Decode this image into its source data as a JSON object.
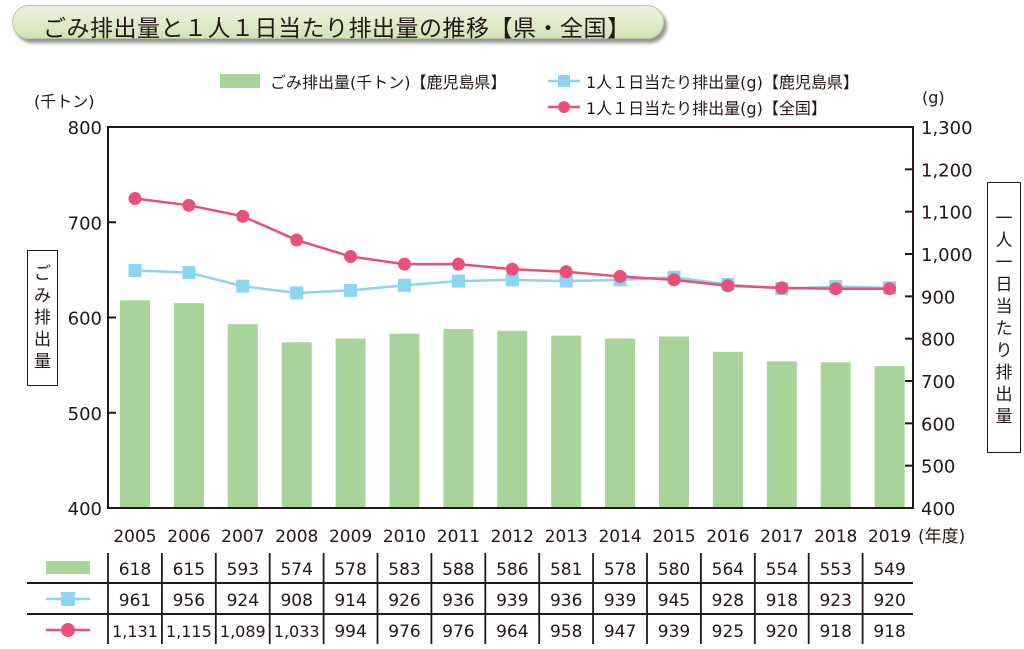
{
  "title": "ごみ排出量と１人１日当たり排出量の推移【県・全国】",
  "colors": {
    "bar": "#a8d49a",
    "pref_line": "#8dd3f2",
    "national_line": "#e8507a",
    "title_bg": "#dbe7c4"
  },
  "chart_data": {
    "type": "bar+line",
    "title": "ごみ排出量と１人１日当たり排出量の推移【県・全国】",
    "categories": [
      "2005",
      "2006",
      "2007",
      "2008",
      "2009",
      "2010",
      "2011",
      "2012",
      "2013",
      "2014",
      "2015",
      "2016",
      "2017",
      "2018",
      "2019"
    ],
    "x_unit": "(年度)",
    "left_axis": {
      "unit": "(千トン)",
      "label": "ごみ排出量",
      "range": [
        400,
        800
      ],
      "ticks": [
        "400",
        "500",
        "600",
        "700",
        "800"
      ]
    },
    "right_axis": {
      "unit": "(g)",
      "label": "一人一日当たり排出量",
      "range": [
        400,
        1300
      ],
      "ticks": [
        "400",
        "500",
        "600",
        "700",
        "800",
        "900",
        "1,000",
        "1,100",
        "1,200",
        "1,300"
      ]
    },
    "series": [
      {
        "name": "ごみ排出量(千トン)【鹿児島県】",
        "type": "bar",
        "axis": "left",
        "values": [
          618,
          615,
          593,
          574,
          578,
          583,
          588,
          586,
          581,
          578,
          580,
          564,
          554,
          553,
          549
        ],
        "labels": [
          "618",
          "615",
          "593",
          "574",
          "578",
          "583",
          "588",
          "586",
          "581",
          "578",
          "580",
          "564",
          "554",
          "553",
          "549"
        ]
      },
      {
        "name": "1人１日当たり排出量(g)【鹿児島県】",
        "type": "line",
        "marker": "square",
        "axis": "right",
        "values": [
          961,
          956,
          924,
          908,
          914,
          926,
          936,
          939,
          936,
          939,
          945,
          928,
          918,
          923,
          920
        ],
        "labels": [
          "961",
          "956",
          "924",
          "908",
          "914",
          "926",
          "936",
          "939",
          "936",
          "939",
          "945",
          "928",
          "918",
          "923",
          "920"
        ]
      },
      {
        "name": "1人１日当たり排出量(g)【全国】",
        "type": "line",
        "marker": "circle",
        "axis": "right",
        "values": [
          1131,
          1115,
          1089,
          1033,
          994,
          976,
          976,
          964,
          958,
          947,
          939,
          925,
          920,
          918,
          918
        ],
        "labels": [
          "1,131",
          "1,115",
          "1,089",
          "1,033",
          "994",
          "976",
          "976",
          "964",
          "958",
          "947",
          "939",
          "925",
          "920",
          "918",
          "918"
        ]
      }
    ],
    "legend_position": "top",
    "grid": false,
    "data_table": true
  }
}
